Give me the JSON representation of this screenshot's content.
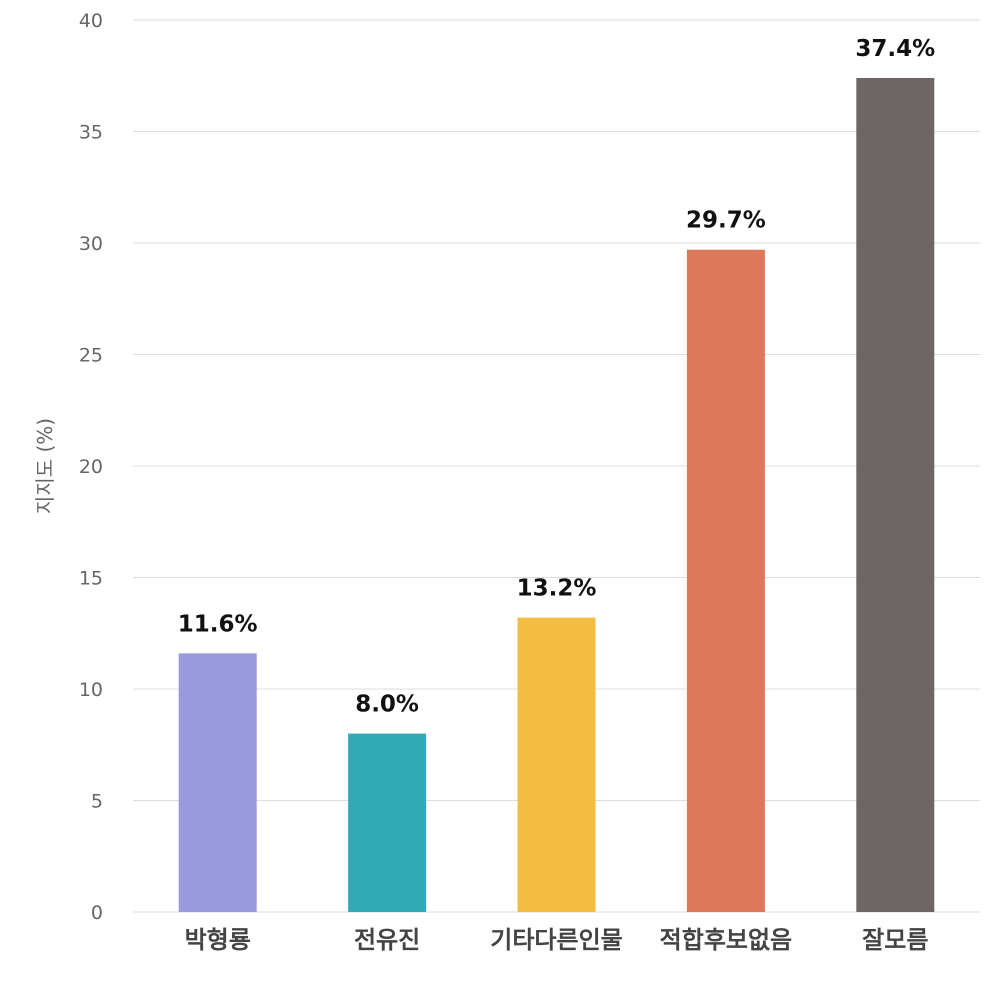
{
  "chart_data": {
    "type": "bar",
    "title": "",
    "xlabel": "",
    "ylabel": "지지도 (%)",
    "ylim": [
      0,
      40
    ],
    "yticks": [
      0,
      5,
      10,
      15,
      20,
      25,
      30,
      35,
      40
    ],
    "grid": true,
    "legend": "none",
    "categories": [
      "박형룡",
      "전유진",
      "기타다른인물",
      "적합후보없음",
      "잘모름"
    ],
    "values": [
      11.6,
      8.0,
      13.2,
      29.7,
      37.4
    ],
    "value_labels": [
      "11.6%",
      "8.0%",
      "13.2%",
      "29.7%",
      "37.4%"
    ],
    "colors": [
      "#9999dd",
      "#31aab8",
      "#f3bd42",
      "#dd785b",
      "#6e6664"
    ]
  }
}
